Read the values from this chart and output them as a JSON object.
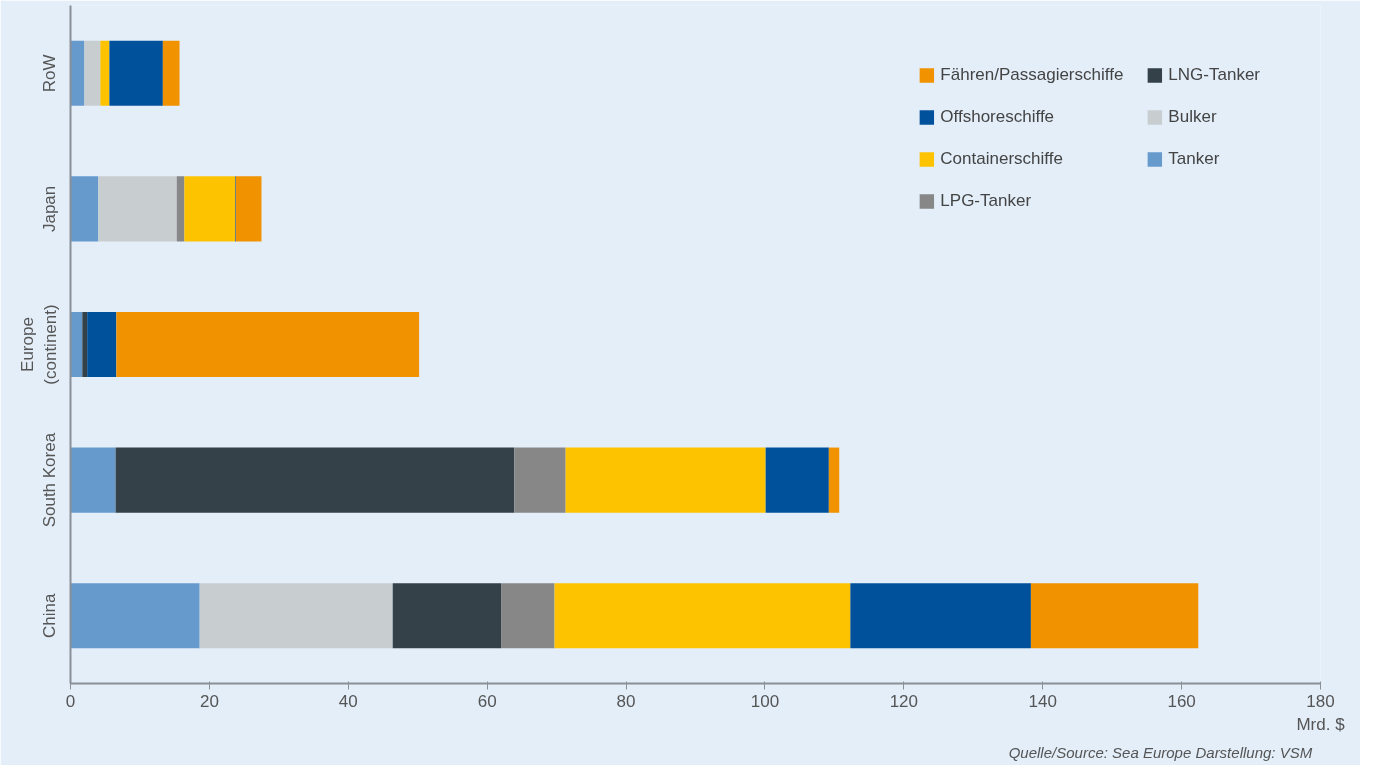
{
  "chart_data": {
    "type": "bar",
    "orientation": "horizontal",
    "stacked": true,
    "categories": [
      "RoW",
      "Japan",
      "Europe\n(continent)",
      "South Korea",
      "China"
    ],
    "series": [
      {
        "name": "Tanker",
        "color": "#6699cc",
        "values": [
          2.0,
          4.0,
          1.7,
          6.5,
          18.6
        ]
      },
      {
        "name": "Bulker",
        "color": "#c8cdd0",
        "values": [
          2.3,
          11.3,
          0,
          0,
          27.8
        ]
      },
      {
        "name": "LNG-Tanker",
        "color": "#354149",
        "values": [
          0,
          0,
          0.7,
          57.4,
          15.6
        ]
      },
      {
        "name": "LPG-Tanker",
        "color": "#878787",
        "values": [
          0,
          1.1,
          0,
          7.4,
          7.7
        ]
      },
      {
        "name": "Containerschiffe",
        "color": "#fec300",
        "values": [
          1.3,
          7.3,
          0,
          28.8,
          42.6
        ]
      },
      {
        "name": "Offshoreschiffe",
        "color": "#00519b",
        "values": [
          7.7,
          0.1,
          4.2,
          9.1,
          26.0
        ]
      },
      {
        "name": "Fähren/Passagierschiffe",
        "color": "#f19200",
        "values": [
          2.4,
          3.7,
          43.6,
          1.5,
          24.1
        ]
      }
    ],
    "xlim": [
      0,
      180
    ],
    "xticks": [
      0,
      20,
      40,
      60,
      80,
      100,
      120,
      140,
      160,
      180
    ],
    "xlabel": "Mrd. $",
    "legend": "top right",
    "grid": false,
    "annotations": [
      "Quelle/Source: Sea Europe   Darstellung: VSM"
    ]
  }
}
